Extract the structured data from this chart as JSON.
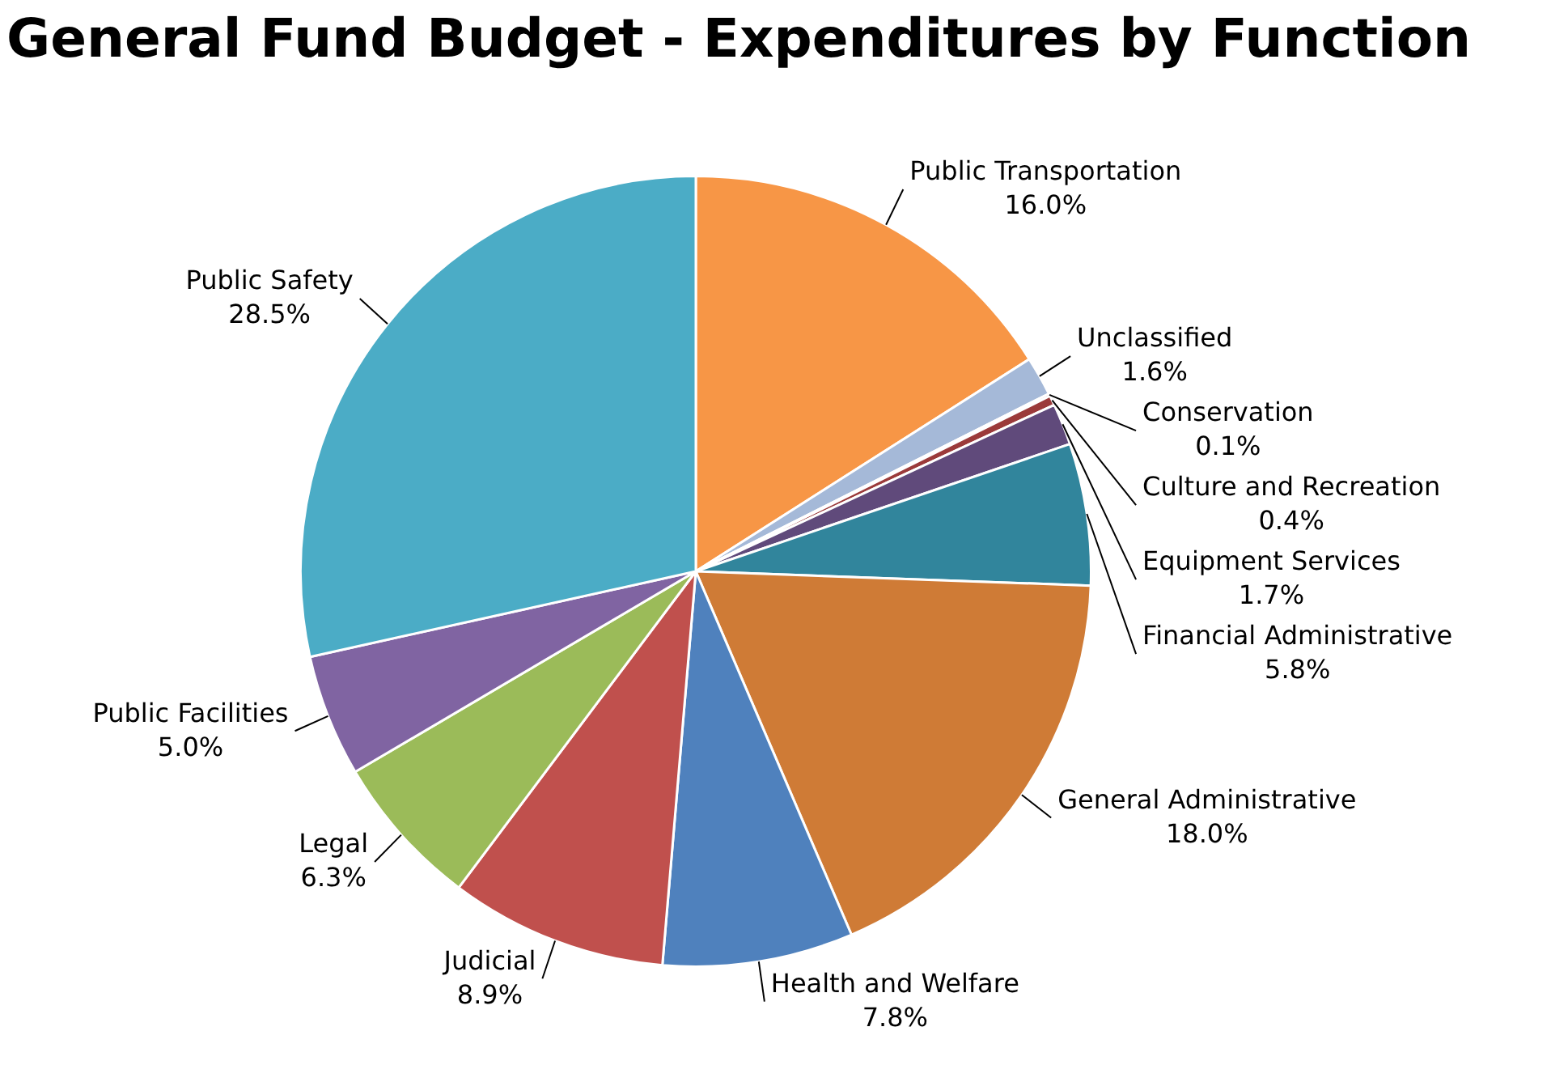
{
  "chart_data": {
    "type": "pie",
    "title": "General Fund Budget - Expenditures by Function",
    "categories": [
      "Public Transportation",
      "Unclassified",
      "Conservation",
      "Culture and Recreation",
      "Equipment Services",
      "Financial Administrative",
      "General Administrative",
      "Health and Welfare",
      "Judicial",
      "Legal",
      "Public Facilities",
      "Public Safety"
    ],
    "values": [
      16.0,
      1.6,
      0.1,
      0.4,
      1.7,
      5.8,
      18.0,
      7.8,
      8.9,
      6.3,
      5.0,
      28.5
    ],
    "value_labels": [
      "16.0%",
      "1.6%",
      "0.1%",
      "0.4%",
      "1.7%",
      "5.8%",
      "18.0%",
      "7.8%",
      "8.9%",
      "6.3%",
      "5.0%",
      "28.5%"
    ],
    "colors": [
      "#f79646",
      "#a5b9d8",
      "#c0504d",
      "#9b3a3a",
      "#604a7b",
      "#31859c",
      "#cf7b36",
      "#4f81bd",
      "#c0504d",
      "#9bbb59",
      "#8064a2",
      "#4bacc6"
    ],
    "legend": false
  }
}
